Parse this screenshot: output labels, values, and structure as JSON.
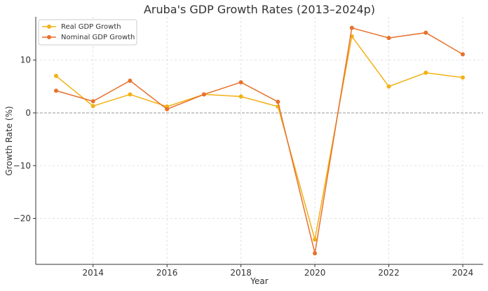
{
  "chart_data": {
    "type": "line",
    "title": "Aruba's GDP Growth Rates (2013–2024p)",
    "xlabel": "Year",
    "ylabel": "Growth Rate (%)",
    "x": [
      2013,
      2014,
      2015,
      2016,
      2017,
      2018,
      2019,
      2020,
      2021,
      2022,
      2023,
      2024
    ],
    "xlim": [
      2012.45,
      2024.55
    ],
    "ylim": [
      -28.7,
      18.2
    ],
    "xticks": [
      2014,
      2016,
      2018,
      2020,
      2022,
      2024
    ],
    "yticks": [
      10,
      0,
      -10,
      -20
    ],
    "ytick_labels": [
      "10",
      "0",
      "−10",
      "−20"
    ],
    "grid": true,
    "zero_line": true,
    "legend_position": "top-left",
    "series": [
      {
        "name": "Real GDP Growth",
        "color": "#F2B115",
        "values": [
          7.0,
          1.3,
          3.5,
          1.2,
          3.5,
          3.1,
          1.2,
          -24.0,
          14.5,
          5.0,
          7.6,
          6.7
        ]
      },
      {
        "name": "Nominal GDP Growth",
        "color": "#E8712C",
        "values": [
          4.2,
          2.2,
          6.1,
          0.7,
          3.5,
          5.8,
          2.1,
          -26.6,
          16.1,
          14.2,
          15.2,
          11.1
        ]
      }
    ]
  }
}
